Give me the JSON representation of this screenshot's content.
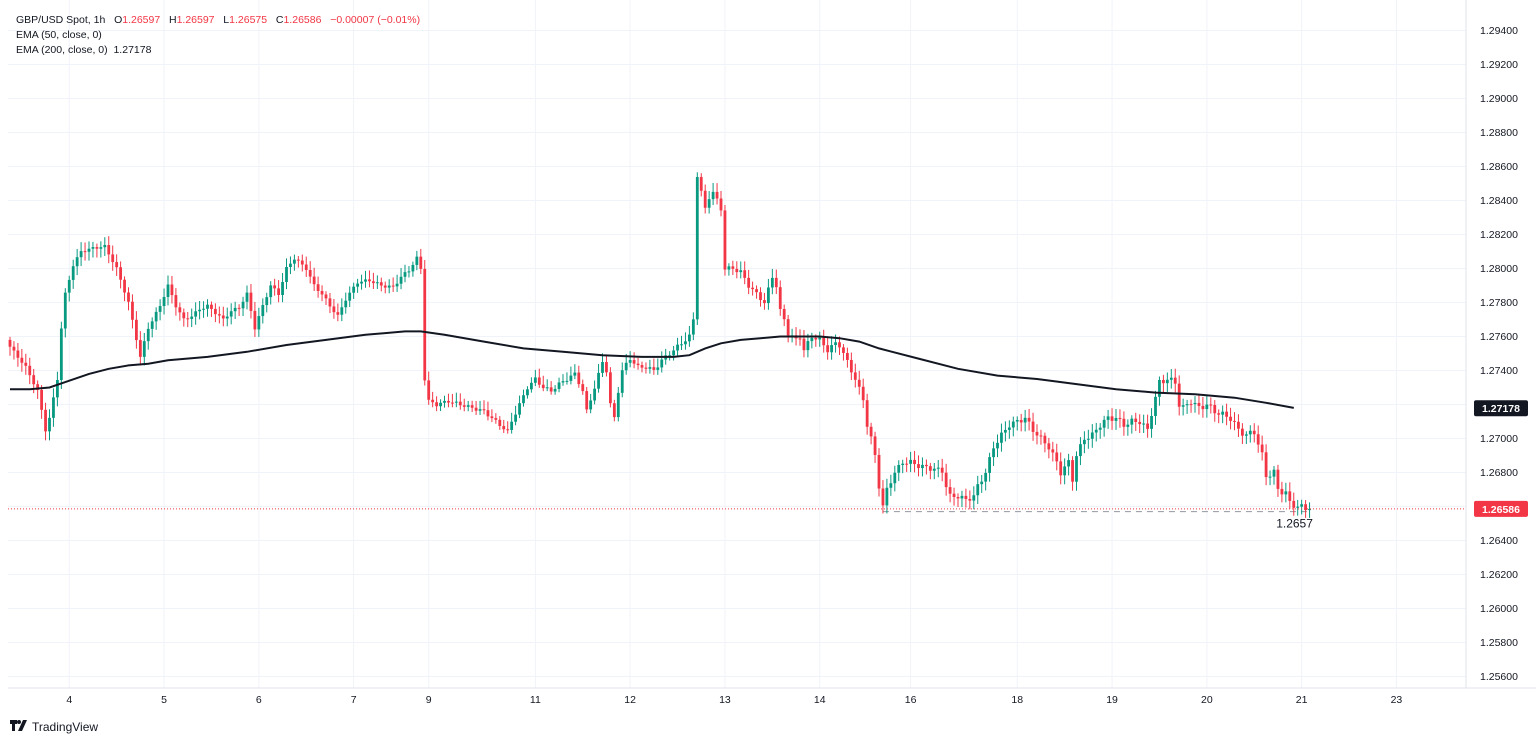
{
  "legend": {
    "symbol": "GBP/USD Spot, 1h",
    "o_label": "O",
    "o_value": "1.26597",
    "h_label": "H",
    "h_value": "1.26597",
    "l_label": "L",
    "l_value": "1.26575",
    "c_label": "C",
    "c_value": "1.26586",
    "change": "−0.00007 (−0.01%)",
    "ema50": "EMA (50, close, 0)",
    "ema200": "EMA (200, close, 0)",
    "ema200_value": "1.27178"
  },
  "brand": {
    "name": "TradingView",
    "icon": "tradingview-logo-icon"
  },
  "colors": {
    "up": "#089981",
    "down": "#f23645",
    "ema": "#131722",
    "grid": "#f0f3fa",
    "axis_text": "#131722",
    "price_tag": "#f23645",
    "ema_tag": "#131722"
  },
  "chart_data": {
    "type": "candlestick",
    "instrument": "GBP/USD Spot",
    "timeframe": "1h",
    "ylim": [
      1.255,
      1.295
    ],
    "yticks": [
      "1.29400",
      "1.29200",
      "1.29000",
      "1.28800",
      "1.28600",
      "1.28400",
      "1.28200",
      "1.28000",
      "1.27800",
      "1.27600",
      "1.27400",
      "1.27200",
      "1.27000",
      "1.26800",
      "1.26600",
      "1.26400",
      "1.26200",
      "1.26000",
      "1.25800",
      "1.25600"
    ],
    "ytick_values": [
      1.294,
      1.292,
      1.29,
      1.288,
      1.286,
      1.284,
      1.282,
      1.28,
      1.278,
      1.276,
      1.274,
      1.272,
      1.27,
      1.268,
      1.266,
      1.264,
      1.262,
      1.26,
      1.258,
      1.256
    ],
    "xticks": [
      {
        "label": "4",
        "index": 15
      },
      {
        "label": "5",
        "index": 39
      },
      {
        "label": "6",
        "index": 63
      },
      {
        "label": "7",
        "index": 87
      },
      {
        "label": "9",
        "index": 106
      },
      {
        "label": "11",
        "index": 133
      },
      {
        "label": "12",
        "index": 157
      },
      {
        "label": "13",
        "index": 181
      },
      {
        "label": "14",
        "index": 205
      },
      {
        "label": "16",
        "index": 228
      },
      {
        "label": "18",
        "index": 255
      },
      {
        "label": "19",
        "index": 279
      },
      {
        "label": "20",
        "index": 303
      },
      {
        "label": "21",
        "index": 327
      },
      {
        "label": "23",
        "index": 351
      }
    ],
    "candle_count": 330,
    "path_points": [
      [
        0,
        1.2754
      ],
      [
        4,
        1.2742
      ],
      [
        7,
        1.2728
      ],
      [
        9,
        1.2705
      ],
      [
        10,
        1.2712
      ],
      [
        12,
        1.2735
      ],
      [
        13,
        1.2765
      ],
      [
        14,
        1.2785
      ],
      [
        16,
        1.2802
      ],
      [
        18,
        1.281
      ],
      [
        21,
        1.2812
      ],
      [
        24,
        1.2813
      ],
      [
        27,
        1.28
      ],
      [
        30,
        1.278
      ],
      [
        33,
        1.2748
      ],
      [
        35,
        1.2765
      ],
      [
        38,
        1.2778
      ],
      [
        40,
        1.279
      ],
      [
        42,
        1.2778
      ],
      [
        44,
        1.277
      ],
      [
        46,
        1.2772
      ],
      [
        48,
        1.2776
      ],
      [
        50,
        1.2778
      ],
      [
        52,
        1.2774
      ],
      [
        54,
        1.277
      ],
      [
        56,
        1.2775
      ],
      [
        58,
        1.2777
      ],
      [
        60,
        1.2785
      ],
      [
        62,
        1.2765
      ],
      [
        64,
        1.2778
      ],
      [
        66,
        1.279
      ],
      [
        68,
        1.2785
      ],
      [
        70,
        1.28
      ],
      [
        72,
        1.2806
      ],
      [
        75,
        1.28
      ],
      [
        77,
        1.279
      ],
      [
        79,
        1.2785
      ],
      [
        81,
        1.2778
      ],
      [
        83,
        1.2772
      ],
      [
        85,
        1.2782
      ],
      [
        88,
        1.2792
      ],
      [
        91,
        1.2793
      ],
      [
        94,
        1.279
      ],
      [
        97,
        1.2789
      ],
      [
        99,
        1.2795
      ],
      [
        101,
        1.2799
      ],
      [
        103,
        1.2806
      ],
      [
        104,
        1.28
      ],
      [
        105,
        1.2735
      ],
      [
        106,
        1.2722
      ],
      [
        108,
        1.272
      ],
      [
        111,
        1.2722
      ],
      [
        114,
        1.272
      ],
      [
        117,
        1.2718
      ],
      [
        120,
        1.2716
      ],
      [
        122,
        1.2712
      ],
      [
        124,
        1.2708
      ],
      [
        126,
        1.2704
      ],
      [
        127,
        1.271
      ],
      [
        129,
        1.272
      ],
      [
        131,
        1.273
      ],
      [
        133,
        1.2735
      ],
      [
        135,
        1.273
      ],
      [
        137,
        1.2728
      ],
      [
        139,
        1.2732
      ],
      [
        141,
        1.2735
      ],
      [
        143,
        1.2738
      ],
      [
        145,
        1.2728
      ],
      [
        146,
        1.2716
      ],
      [
        148,
        1.273
      ],
      [
        150,
        1.2745
      ],
      [
        151,
        1.274
      ],
      [
        152,
        1.272
      ],
      [
        153,
        1.2712
      ],
      [
        154,
        1.2728
      ],
      [
        155,
        1.274
      ],
      [
        157,
        1.2747
      ],
      [
        159,
        1.2742
      ],
      [
        161,
        1.2742
      ],
      [
        163,
        1.274
      ],
      [
        165,
        1.2746
      ],
      [
        168,
        1.2752
      ],
      [
        170,
        1.2756
      ],
      [
        172,
        1.276
      ],
      [
        173,
        1.277
      ],
      [
        174,
        1.2855
      ],
      [
        175,
        1.2845
      ],
      [
        176,
        1.2835
      ],
      [
        177,
        1.2842
      ],
      [
        178,
        1.2845
      ],
      [
        180,
        1.2835
      ],
      [
        181,
        1.28
      ],
      [
        183,
        1.28
      ],
      [
        185,
        1.2798
      ],
      [
        187,
        1.279
      ],
      [
        189,
        1.2785
      ],
      [
        191,
        1.278
      ],
      [
        193,
        1.2795
      ],
      [
        194,
        1.279
      ],
      [
        195,
        1.2775
      ],
      [
        196,
        1.277
      ],
      [
        197,
        1.2762
      ],
      [
        199,
        1.2758
      ],
      [
        200,
        1.276
      ],
      [
        201,
        1.2752
      ],
      [
        203,
        1.276
      ],
      [
        205,
        1.2758
      ],
      [
        207,
        1.2752
      ],
      [
        209,
        1.2756
      ],
      [
        210,
        1.2755
      ],
      [
        212,
        1.2745
      ],
      [
        214,
        1.2735
      ],
      [
        216,
        1.2723
      ],
      [
        217,
        1.2708
      ],
      [
        218,
        1.27
      ],
      [
        219,
        1.269
      ],
      [
        220,
        1.2672
      ],
      [
        221,
        1.266
      ],
      [
        222,
        1.267
      ],
      [
        224,
        1.268
      ],
      [
        226,
        1.2686
      ],
      [
        228,
        1.2686
      ],
      [
        230,
        1.2684
      ],
      [
        232,
        1.2683
      ],
      [
        234,
        1.2682
      ],
      [
        236,
        1.2681
      ],
      [
        237,
        1.2672
      ],
      [
        238,
        1.2666
      ],
      [
        240,
        1.2666
      ],
      [
        242,
        1.2664
      ],
      [
        244,
        1.2666
      ],
      [
        245,
        1.2672
      ],
      [
        247,
        1.268
      ],
      [
        249,
        1.2695
      ],
      [
        251,
        1.2702
      ],
      [
        253,
        1.2708
      ],
      [
        255,
        1.271
      ],
      [
        257,
        1.2712
      ],
      [
        259,
        1.2705
      ],
      [
        261,
        1.27
      ],
      [
        263,
        1.2695
      ],
      [
        265,
        1.2686
      ],
      [
        266,
        1.268
      ],
      [
        268,
        1.2686
      ],
      [
        269,
        1.2676
      ],
      [
        270,
        1.269
      ],
      [
        272,
        1.27
      ],
      [
        274,
        1.2702
      ],
      [
        276,
        1.2708
      ],
      [
        278,
        1.2712
      ],
      [
        280,
        1.2712
      ],
      [
        282,
        1.2708
      ],
      [
        284,
        1.271
      ],
      [
        286,
        1.271
      ],
      [
        288,
        1.2705
      ],
      [
        289,
        1.2715
      ],
      [
        291,
        1.2733
      ],
      [
        293,
        1.2735
      ],
      [
        295,
        1.2733
      ],
      [
        296,
        1.272
      ],
      [
        297,
        1.2718
      ],
      [
        299,
        1.2722
      ],
      [
        301,
        1.2718
      ],
      [
        303,
        1.272
      ],
      [
        305,
        1.2716
      ],
      [
        307,
        1.2714
      ],
      [
        309,
        1.2712
      ],
      [
        311,
        1.2705
      ],
      [
        313,
        1.2702
      ],
      [
        315,
        1.2704
      ],
      [
        317,
        1.269
      ],
      [
        318,
        1.2678
      ],
      [
        320,
        1.268
      ],
      [
        321,
        1.267
      ],
      [
        323,
        1.2668
      ],
      [
        324,
        1.2662
      ],
      [
        326,
        1.266
      ],
      [
        328,
        1.2659
      ],
      [
        329,
        1.2658
      ]
    ],
    "ema200": [
      [
        0,
        1.2729
      ],
      [
        5,
        1.2729
      ],
      [
        10,
        1.273
      ],
      [
        15,
        1.2734
      ],
      [
        20,
        1.2738
      ],
      [
        25,
        1.2741
      ],
      [
        30,
        1.2743
      ],
      [
        35,
        1.2744
      ],
      [
        40,
        1.2746
      ],
      [
        50,
        1.2748
      ],
      [
        60,
        1.2751
      ],
      [
        70,
        1.2755
      ],
      [
        80,
        1.2758
      ],
      [
        90,
        1.2761
      ],
      [
        100,
        1.2763
      ],
      [
        104,
        1.2763
      ],
      [
        110,
        1.2761
      ],
      [
        120,
        1.2757
      ],
      [
        130,
        1.2753
      ],
      [
        140,
        1.2751
      ],
      [
        150,
        1.2749
      ],
      [
        160,
        1.2748
      ],
      [
        168,
        1.2748
      ],
      [
        172,
        1.2749
      ],
      [
        176,
        1.2753
      ],
      [
        180,
        1.2756
      ],
      [
        185,
        1.2758
      ],
      [
        190,
        1.2759
      ],
      [
        195,
        1.276
      ],
      [
        200,
        1.276
      ],
      [
        205,
        1.276
      ],
      [
        210,
        1.2759
      ],
      [
        215,
        1.2757
      ],
      [
        220,
        1.2753
      ],
      [
        230,
        1.2747
      ],
      [
        240,
        1.2741
      ],
      [
        250,
        1.2737
      ],
      [
        260,
        1.2735
      ],
      [
        270,
        1.2732
      ],
      [
        280,
        1.2729
      ],
      [
        290,
        1.2727
      ],
      [
        300,
        1.2726
      ],
      [
        310,
        1.2724
      ],
      [
        318,
        1.2721
      ],
      [
        325,
        1.2718
      ]
    ],
    "support_level": 1.2657,
    "support_label": "1.2657",
    "support_start_index": 221,
    "support_end_index": 329,
    "last_price": 1.26586,
    "last_price_label": "1.26586",
    "ema200_last": 1.27178,
    "ema200_label": "1.27178"
  }
}
